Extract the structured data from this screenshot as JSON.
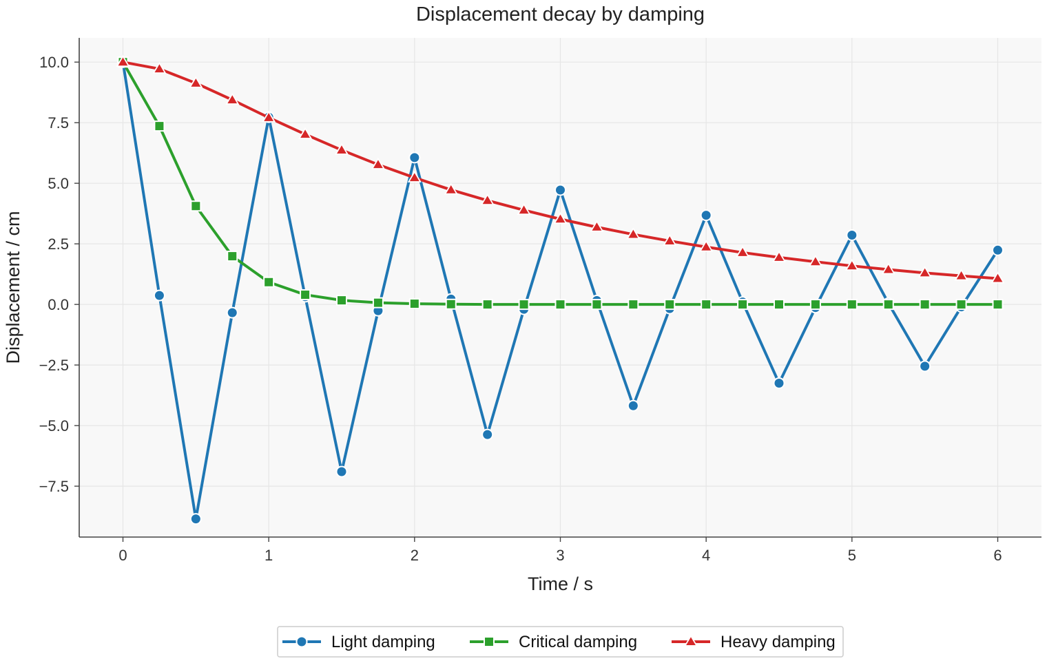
{
  "chart_data": {
    "type": "line",
    "title": "Displacement decay by damping",
    "xlabel": "Time / s",
    "ylabel": "Displacement / cm",
    "xlim": [
      -0.3,
      6.3
    ],
    "ylim": [
      -9.6,
      11.0
    ],
    "xticks": [
      0,
      1,
      2,
      3,
      4,
      5,
      6
    ],
    "xtick_labels": [
      "0",
      "1",
      "2",
      "3",
      "4",
      "5",
      "6"
    ],
    "yticks": [
      10.0,
      7.5,
      5.0,
      2.5,
      0.0,
      -2.5,
      -5.0,
      -7.5
    ],
    "ytick_labels": [
      "10.0",
      "7.5",
      "5.0",
      "2.5",
      "0.0",
      "−2.5",
      "−5.0",
      "−7.5"
    ],
    "grid": true,
    "legend_position": "bottom-center",
    "x": [
      0,
      0.25,
      0.5,
      0.75,
      1.0,
      1.25,
      1.5,
      1.75,
      2.0,
      2.25,
      2.5,
      2.75,
      3.0,
      3.25,
      3.5,
      3.75,
      4.0,
      4.25,
      4.5,
      4.75,
      5.0,
      5.25,
      5.5,
      5.75,
      6.0
    ],
    "series": [
      {
        "name": "Light damping",
        "color": "#1f77b4",
        "marker": "circle",
        "values": [
          10.0,
          0.37,
          -8.85,
          -0.34,
          7.73,
          0.32,
          -6.9,
          -0.26,
          6.06,
          0.22,
          -5.37,
          -0.2,
          4.72,
          0.16,
          -4.18,
          -0.17,
          3.68,
          0.1,
          -3.25,
          -0.13,
          2.86,
          0.05,
          -2.55,
          -0.1,
          2.24
        ]
      },
      {
        "name": "Critical damping",
        "color": "#2ca02c",
        "marker": "square",
        "values": [
          10.0,
          7.36,
          4.06,
          1.99,
          0.92,
          0.4,
          0.17,
          0.07,
          0.03,
          0.01,
          0.0,
          0.0,
          0.0,
          0.0,
          0.0,
          0.0,
          0.0,
          0.0,
          0.0,
          0.0,
          0.0,
          0.0,
          0.0,
          0.0,
          0.0
        ]
      },
      {
        "name": "Heavy damping",
        "color": "#d62728",
        "marker": "triangle",
        "values": [
          10.0,
          9.72,
          9.13,
          8.44,
          7.71,
          7.02,
          6.37,
          5.77,
          5.23,
          4.73,
          4.29,
          3.89,
          3.52,
          3.19,
          2.89,
          2.62,
          2.37,
          2.14,
          1.94,
          1.76,
          1.59,
          1.44,
          1.3,
          1.18,
          1.07
        ]
      }
    ]
  },
  "colors": {
    "plot_background": "#f8f8f8",
    "grid": "#e6e6e6",
    "axis": "#444444"
  }
}
